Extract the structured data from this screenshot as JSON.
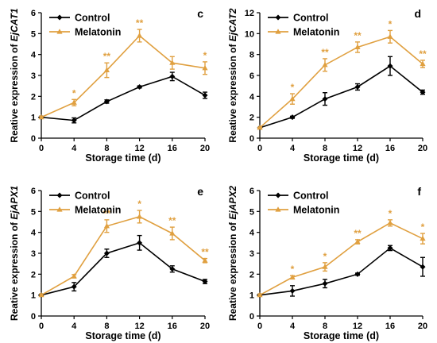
{
  "colors": {
    "control": "#000000",
    "melatonin": "#E0A040"
  },
  "chart_data": [
    {
      "panel": "c",
      "type": "line",
      "x": [
        0,
        4,
        8,
        12,
        16,
        20
      ],
      "xlabel": "Storage time (d)",
      "ylabel_prefix": "Reative expression of ",
      "ylabel_gene": "EjCAT1",
      "xlim": [
        0,
        20
      ],
      "ylim": [
        0,
        6
      ],
      "yticks": [
        0,
        1,
        2,
        3,
        4,
        5,
        6
      ],
      "legend": "top-left",
      "series": [
        {
          "name": "Control",
          "values": [
            1.0,
            0.85,
            1.75,
            2.45,
            2.95,
            2.05
          ],
          "errors": [
            0.05,
            0.12,
            0.08,
            0.05,
            0.2,
            0.15
          ]
        },
        {
          "name": "Melatonin",
          "values": [
            1.0,
            1.7,
            3.25,
            4.9,
            3.6,
            3.35
          ],
          "errors": [
            0.05,
            0.15,
            0.35,
            0.3,
            0.3,
            0.3
          ]
        }
      ],
      "significance": [
        "",
        "*",
        "**",
        "**",
        "",
        "*"
      ]
    },
    {
      "panel": "d",
      "type": "line",
      "x": [
        0,
        4,
        8,
        12,
        16,
        20
      ],
      "xlabel": "Storage time (d)",
      "ylabel_prefix": "Reative expression of ",
      "ylabel_gene": "EjCAT2",
      "xlim": [
        0,
        20
      ],
      "ylim": [
        0,
        12
      ],
      "yticks": [
        0,
        2,
        4,
        6,
        8,
        10,
        12
      ],
      "legend": "top-left",
      "series": [
        {
          "name": "Control",
          "values": [
            1.0,
            2.0,
            3.75,
            4.9,
            6.9,
            4.4
          ],
          "errors": [
            0.05,
            0.1,
            0.6,
            0.3,
            0.9,
            0.2
          ]
        },
        {
          "name": "Melatonin",
          "values": [
            1.0,
            3.75,
            7.0,
            8.7,
            9.7,
            7.1
          ],
          "errors": [
            0.05,
            0.5,
            0.6,
            0.5,
            0.6,
            0.35
          ]
        }
      ],
      "significance": [
        "",
        "*",
        "**",
        "**",
        "*",
        "**"
      ]
    },
    {
      "panel": "e",
      "type": "line",
      "x": [
        0,
        4,
        8,
        12,
        16,
        20
      ],
      "xlabel": "Storage time (d)",
      "ylabel_prefix": "Reative expression of ",
      "ylabel_gene": "EjAPX1",
      "xlim": [
        0,
        20
      ],
      "ylim": [
        0,
        6
      ],
      "yticks": [
        0,
        1,
        2,
        3,
        4,
        5,
        6
      ],
      "legend": "top-left",
      "series": [
        {
          "name": "Control",
          "values": [
            1.0,
            1.4,
            3.0,
            3.5,
            2.25,
            1.65
          ],
          "errors": [
            0.05,
            0.2,
            0.2,
            0.35,
            0.15,
            0.1
          ]
        },
        {
          "name": "Melatonin",
          "values": [
            1.0,
            1.9,
            4.3,
            4.75,
            3.95,
            2.65
          ],
          "errors": [
            0.05,
            0.08,
            0.3,
            0.3,
            0.3,
            0.1
          ]
        }
      ],
      "significance": [
        "",
        "",
        "**",
        "*",
        "**",
        "**"
      ]
    },
    {
      "panel": "f",
      "type": "line",
      "x": [
        0,
        4,
        8,
        12,
        16,
        20
      ],
      "xlabel": "Storage time (d)",
      "ylabel_prefix": "Reative expression of ",
      "ylabel_gene": "EjAPX2",
      "xlim": [
        0,
        20
      ],
      "ylim": [
        0,
        6
      ],
      "yticks": [
        0,
        1,
        2,
        3,
        4,
        5,
        6
      ],
      "legend": "top-left",
      "series": [
        {
          "name": "Control",
          "values": [
            1.0,
            1.2,
            1.55,
            2.0,
            3.25,
            2.35
          ],
          "errors": [
            0.05,
            0.25,
            0.2,
            0.05,
            0.12,
            0.45
          ]
        },
        {
          "name": "Melatonin",
          "values": [
            1.0,
            1.85,
            2.35,
            3.55,
            4.45,
            3.7
          ],
          "errors": [
            0.05,
            0.08,
            0.2,
            0.1,
            0.15,
            0.25
          ]
        }
      ],
      "significance": [
        "",
        "*",
        "*",
        "**",
        "*",
        "*"
      ]
    }
  ]
}
